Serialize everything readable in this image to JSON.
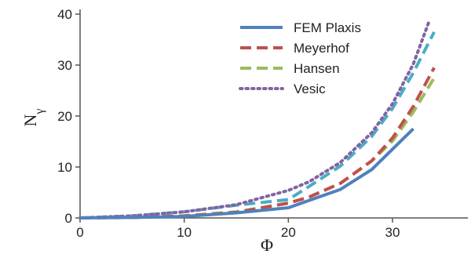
{
  "chart_data": {
    "type": "line",
    "title": "",
    "xlabel": "Φ",
    "ylabel": "N",
    "ylabel_subscript": "γ",
    "xlim": [
      0,
      34
    ],
    "ylim": [
      0,
      40
    ],
    "xticks": [
      0,
      10,
      20,
      30
    ],
    "yticks": [
      0,
      10,
      20,
      30,
      40
    ],
    "grid": false,
    "legend_position": "top-right",
    "series": [
      {
        "name": "FEM Plaxis",
        "color": "#4F81BD",
        "style": "solid",
        "x": [
          0,
          5,
          10,
          15,
          20,
          25,
          28,
          30,
          32
        ],
        "y": [
          0,
          0.1,
          0.3,
          1.0,
          2.0,
          5.6,
          9.5,
          13.5,
          17.5
        ]
      },
      {
        "name": "Meyerhof",
        "color": "#C0504D",
        "style": "dash",
        "x": [
          0,
          5,
          10,
          15,
          20,
          22,
          25,
          28,
          30,
          32,
          34
        ],
        "y": [
          0,
          0.1,
          0.4,
          1.1,
          2.9,
          4.1,
          6.8,
          11.2,
          15.7,
          21.9,
          29.5
        ]
      },
      {
        "name": "Hansen",
        "color": "#9BBB59",
        "style": "dash",
        "x": [
          0,
          5,
          10,
          15,
          20,
          22,
          25,
          28,
          30,
          32,
          34
        ],
        "y": [
          0,
          0.1,
          0.4,
          1.2,
          2.9,
          4.1,
          6.8,
          11.2,
          15.1,
          20.8,
          27.5
        ]
      },
      {
        "name": "Vesic",
        "color": "#8064A2",
        "style": "dot",
        "x": [
          0,
          5,
          10,
          15,
          20,
          22,
          25,
          28,
          30,
          32,
          33.5
        ],
        "y": [
          0,
          0.4,
          1.2,
          2.6,
          5.4,
          7.1,
          10.9,
          16.7,
          22.4,
          30.2,
          38.5
        ]
      },
      {
        "name": "",
        "color": "#4BACC6",
        "style": "dash",
        "x": [
          0,
          5,
          10,
          15,
          20,
          22,
          25,
          28,
          30,
          32,
          34
        ],
        "y": [
          0,
          0.4,
          1.2,
          2.5,
          3.6,
          6.2,
          10.2,
          16.0,
          21.5,
          28.5,
          36.5
        ]
      }
    ]
  }
}
